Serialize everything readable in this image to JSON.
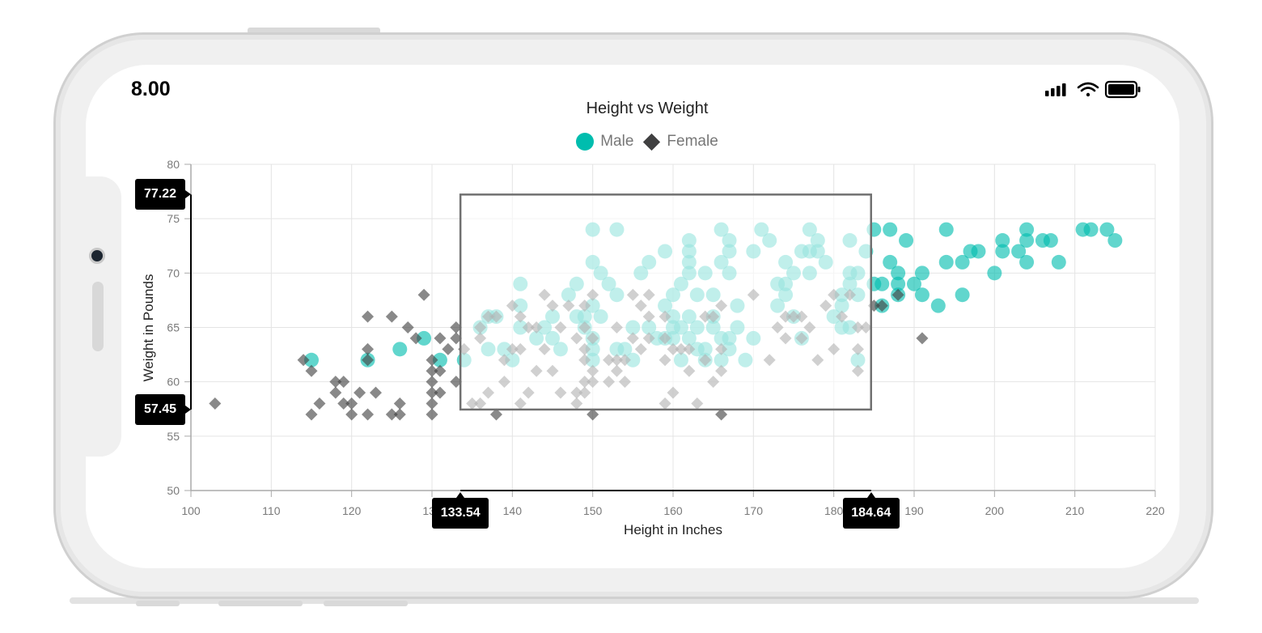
{
  "status_bar": {
    "time": "8.00",
    "signal_icon": "cellular-signal-icon",
    "wifi_icon": "wifi-icon",
    "battery_icon": "battery-icon"
  },
  "chart_data": {
    "type": "scatter",
    "title": "Height vs Weight",
    "xlabel": "Height in Inches",
    "ylabel": "Weight in Pounds",
    "xlim": [
      100,
      220
    ],
    "ylim": [
      50,
      80
    ],
    "x_ticks": [
      "100",
      "110",
      "120",
      "130",
      "140",
      "150",
      "160",
      "170",
      "180",
      "190",
      "200",
      "210",
      "220"
    ],
    "y_ticks": [
      "50",
      "55",
      "60",
      "65",
      "70",
      "75",
      "80"
    ],
    "grid": true,
    "legend_position": "top",
    "series": [
      {
        "name": "Male",
        "marker": "circle",
        "color": "#00bdae",
        "points": [
          [
            115,
            62
          ],
          [
            122,
            62
          ],
          [
            126,
            63
          ],
          [
            129,
            64
          ],
          [
            131,
            62
          ],
          [
            134,
            62
          ],
          [
            136,
            65
          ],
          [
            137,
            66
          ],
          [
            137,
            63
          ],
          [
            138,
            66
          ],
          [
            139,
            63
          ],
          [
            140,
            62
          ],
          [
            141,
            65
          ],
          [
            141,
            67
          ],
          [
            141,
            69
          ],
          [
            143,
            64
          ],
          [
            144,
            65
          ],
          [
            145,
            64
          ],
          [
            145,
            66
          ],
          [
            146,
            63
          ],
          [
            147,
            68
          ],
          [
            148,
            66
          ],
          [
            148,
            69
          ],
          [
            149,
            66
          ],
          [
            149,
            65
          ],
          [
            150,
            62
          ],
          [
            150,
            63
          ],
          [
            150,
            64
          ],
          [
            150,
            67
          ],
          [
            150,
            71
          ],
          [
            150,
            74
          ],
          [
            151,
            66
          ],
          [
            151,
            70
          ],
          [
            152,
            69
          ],
          [
            153,
            63
          ],
          [
            153,
            68
          ],
          [
            153,
            74
          ],
          [
            154,
            63
          ],
          [
            155,
            62
          ],
          [
            155,
            65
          ],
          [
            156,
            70
          ],
          [
            157,
            71
          ],
          [
            157,
            65
          ],
          [
            158,
            64
          ],
          [
            159,
            64
          ],
          [
            159,
            67
          ],
          [
            159,
            72
          ],
          [
            160,
            64
          ],
          [
            160,
            65
          ],
          [
            160,
            66
          ],
          [
            160,
            68
          ],
          [
            161,
            62
          ],
          [
            161,
            65
          ],
          [
            161,
            69
          ],
          [
            162,
            64
          ],
          [
            162,
            66
          ],
          [
            162,
            70
          ],
          [
            162,
            71
          ],
          [
            162,
            72
          ],
          [
            162,
            73
          ],
          [
            163,
            63
          ],
          [
            163,
            65
          ],
          [
            163,
            68
          ],
          [
            164,
            62
          ],
          [
            164,
            63
          ],
          [
            164,
            70
          ],
          [
            165,
            65
          ],
          [
            165,
            66
          ],
          [
            165,
            68
          ],
          [
            166,
            62
          ],
          [
            166,
            64
          ],
          [
            166,
            71
          ],
          [
            166,
            74
          ],
          [
            167,
            63
          ],
          [
            167,
            64
          ],
          [
            167,
            70
          ],
          [
            167,
            72
          ],
          [
            167,
            73
          ],
          [
            168,
            65
          ],
          [
            168,
            67
          ],
          [
            169,
            62
          ],
          [
            170,
            64
          ],
          [
            170,
            72
          ],
          [
            171,
            74
          ],
          [
            172,
            73
          ],
          [
            173,
            67
          ],
          [
            173,
            69
          ],
          [
            174,
            68
          ],
          [
            174,
            69
          ],
          [
            174,
            71
          ],
          [
            175,
            66
          ],
          [
            175,
            70
          ],
          [
            176,
            64
          ],
          [
            176,
            72
          ],
          [
            177,
            70
          ],
          [
            177,
            72
          ],
          [
            177,
            74
          ],
          [
            178,
            73
          ],
          [
            178,
            72
          ],
          [
            179,
            71
          ],
          [
            180,
            66
          ],
          [
            181,
            65
          ],
          [
            181,
            67
          ],
          [
            181,
            68
          ],
          [
            182,
            65
          ],
          [
            182,
            69
          ],
          [
            182,
            70
          ],
          [
            182,
            73
          ],
          [
            183,
            62
          ],
          [
            183,
            68
          ],
          [
            183,
            70
          ],
          [
            184,
            72
          ],
          [
            185,
            69
          ],
          [
            185,
            74
          ],
          [
            186,
            67
          ],
          [
            186,
            69
          ],
          [
            187,
            71
          ],
          [
            187,
            74
          ],
          [
            188,
            68
          ],
          [
            188,
            69
          ],
          [
            188,
            70
          ],
          [
            189,
            73
          ],
          [
            190,
            69
          ],
          [
            191,
            68
          ],
          [
            191,
            70
          ],
          [
            193,
            67
          ],
          [
            194,
            71
          ],
          [
            194,
            74
          ],
          [
            196,
            68
          ],
          [
            196,
            71
          ],
          [
            197,
            72
          ],
          [
            198,
            72
          ],
          [
            200,
            70
          ],
          [
            201,
            72
          ],
          [
            201,
            73
          ],
          [
            203,
            72
          ],
          [
            204,
            71
          ],
          [
            204,
            73
          ],
          [
            204,
            74
          ],
          [
            206,
            73
          ],
          [
            207,
            73
          ],
          [
            208,
            71
          ],
          [
            211,
            74
          ],
          [
            212,
            74
          ],
          [
            214,
            74
          ],
          [
            215,
            73
          ]
        ]
      },
      {
        "name": "Female",
        "marker": "diamond",
        "color": "#404041",
        "points": [
          [
            103,
            58
          ],
          [
            114,
            62
          ],
          [
            115,
            61
          ],
          [
            115,
            57
          ],
          [
            116,
            58
          ],
          [
            118,
            60
          ],
          [
            118,
            59
          ],
          [
            119,
            60
          ],
          [
            119,
            58
          ],
          [
            120,
            57
          ],
          [
            120,
            58
          ],
          [
            121,
            59
          ],
          [
            122,
            57
          ],
          [
            122,
            62
          ],
          [
            122,
            63
          ],
          [
            122,
            66
          ],
          [
            123,
            59
          ],
          [
            125,
            57
          ],
          [
            125,
            66
          ],
          [
            126,
            57
          ],
          [
            126,
            58
          ],
          [
            127,
            65
          ],
          [
            128,
            64
          ],
          [
            129,
            68
          ],
          [
            130,
            62
          ],
          [
            130,
            61
          ],
          [
            130,
            60
          ],
          [
            130,
            59
          ],
          [
            130,
            58
          ],
          [
            130,
            57
          ],
          [
            131,
            59
          ],
          [
            131,
            61
          ],
          [
            131,
            64
          ],
          [
            132,
            63
          ],
          [
            133,
            60
          ],
          [
            133,
            64
          ],
          [
            133,
            65
          ],
          [
            134,
            63
          ],
          [
            135,
            58
          ],
          [
            136,
            58
          ],
          [
            136,
            64
          ],
          [
            136,
            65
          ],
          [
            137,
            59
          ],
          [
            137,
            66
          ],
          [
            138,
            57
          ],
          [
            138,
            66
          ],
          [
            139,
            60
          ],
          [
            139,
            62
          ],
          [
            140,
            63
          ],
          [
            140,
            67
          ],
          [
            141,
            58
          ],
          [
            141,
            63
          ],
          [
            141,
            66
          ],
          [
            142,
            59
          ],
          [
            142,
            65
          ],
          [
            143,
            61
          ],
          [
            143,
            65
          ],
          [
            144,
            63
          ],
          [
            144,
            68
          ],
          [
            145,
            61
          ],
          [
            145,
            67
          ],
          [
            146,
            59
          ],
          [
            146,
            65
          ],
          [
            147,
            67
          ],
          [
            148,
            58
          ],
          [
            148,
            59
          ],
          [
            148,
            64
          ],
          [
            149,
            59
          ],
          [
            149,
            60
          ],
          [
            149,
            62
          ],
          [
            149,
            63
          ],
          [
            149,
            65
          ],
          [
            149,
            67
          ],
          [
            150,
            57
          ],
          [
            150,
            60
          ],
          [
            150,
            61
          ],
          [
            150,
            64
          ],
          [
            150,
            68
          ],
          [
            152,
            60
          ],
          [
            152,
            62
          ],
          [
            153,
            61
          ],
          [
            153,
            62
          ],
          [
            153,
            65
          ],
          [
            154,
            60
          ],
          [
            154,
            62
          ],
          [
            155,
            64
          ],
          [
            155,
            68
          ],
          [
            156,
            63
          ],
          [
            156,
            67
          ],
          [
            157,
            64
          ],
          [
            157,
            66
          ],
          [
            157,
            68
          ],
          [
            159,
            58
          ],
          [
            159,
            62
          ],
          [
            159,
            64
          ],
          [
            159,
            66
          ],
          [
            160,
            59
          ],
          [
            160,
            63
          ],
          [
            161,
            63
          ],
          [
            162,
            61
          ],
          [
            162,
            63
          ],
          [
            163,
            58
          ],
          [
            164,
            62
          ],
          [
            164,
            66
          ],
          [
            165,
            60
          ],
          [
            165,
            66
          ],
          [
            166,
            57
          ],
          [
            166,
            61
          ],
          [
            166,
            63
          ],
          [
            166,
            67
          ],
          [
            170,
            68
          ],
          [
            172,
            62
          ],
          [
            173,
            65
          ],
          [
            174,
            64
          ],
          [
            174,
            66
          ],
          [
            175,
            66
          ],
          [
            176,
            64
          ],
          [
            176,
            66
          ],
          [
            177,
            65
          ],
          [
            178,
            62
          ],
          [
            179,
            67
          ],
          [
            180,
            63
          ],
          [
            180,
            68
          ],
          [
            181,
            66
          ],
          [
            182,
            68
          ],
          [
            183,
            61
          ],
          [
            183,
            63
          ],
          [
            183,
            65
          ],
          [
            184,
            65
          ],
          [
            185,
            67
          ],
          [
            186,
            67
          ],
          [
            188,
            68
          ],
          [
            191,
            64
          ]
        ]
      }
    ],
    "selection": {
      "x_min_label": "133.54",
      "x_max_label": "184.64",
      "y_min_label": "57.45",
      "y_max_label": "77.22",
      "x_min": 133.54,
      "x_max": 184.64,
      "y_min": 57.45,
      "y_max": 77.22
    }
  }
}
